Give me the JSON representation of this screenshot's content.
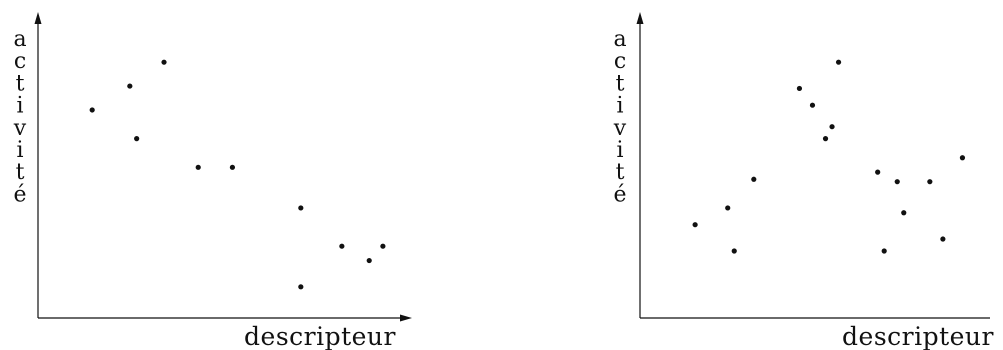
{
  "chart_data": [
    {
      "type": "scatter",
      "xlabel": "descripteur",
      "ylabel": "activité",
      "grid": false,
      "legend": "none",
      "xlim": [
        0,
        100
      ],
      "ylim": [
        0,
        100
      ],
      "x": [
        10,
        21,
        23,
        31,
        41,
        51,
        71,
        71,
        83,
        91,
        95
      ],
      "y": [
        77,
        87,
        65,
        97,
        53,
        53,
        36,
        3,
        20,
        14,
        20
      ]
    },
    {
      "type": "scatter",
      "xlabel": "descripteur",
      "ylabel": "activité",
      "grid": false,
      "legend": "none",
      "xlim": [
        0,
        100
      ],
      "ylim": [
        0,
        100
      ],
      "x": [
        12,
        22,
        24,
        30,
        44,
        48,
        52,
        54,
        56,
        68,
        70,
        74,
        76,
        84,
        88,
        94
      ],
      "y": [
        29,
        36,
        18,
        48,
        86,
        79,
        65,
        70,
        97,
        51,
        18,
        47,
        34,
        47,
        23,
        57
      ]
    }
  ],
  "styles": {
    "ink_color": "#111111",
    "background_color": "#ffffff"
  }
}
